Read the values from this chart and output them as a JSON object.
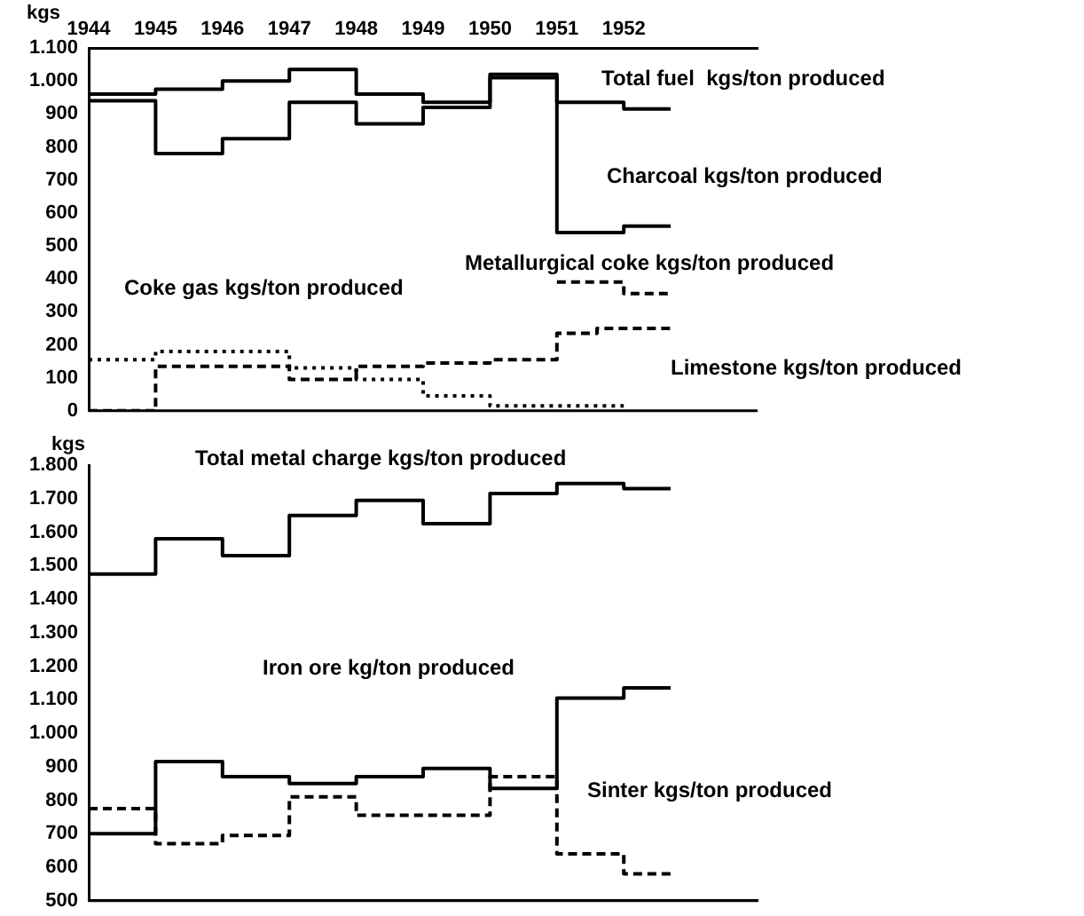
{
  "chart_data": [
    {
      "type": "step",
      "ylabel": "kgs",
      "xlim": [
        1944,
        1954
      ],
      "xticks": [
        1944,
        1945,
        1946,
        1947,
        1948,
        1949,
        1950,
        1951,
        1952
      ],
      "ylim": [
        0,
        1100
      ],
      "yticks": [
        0,
        100,
        200,
        300,
        400,
        500,
        600,
        700,
        800,
        900,
        {
          "value": 1000,
          "label": "1.000"
        },
        {
          "value": 1100,
          "label": "1.100"
        }
      ],
      "grid": false,
      "legend": false,
      "series": [
        {
          "color": "#000000",
          "line_style": "solid",
          "x": [
            1944,
            1945,
            1946,
            1947,
            1948,
            1949,
            1950,
            1951,
            1952,
            1952.7
          ],
          "values": [
            960,
            975,
            1000,
            1035,
            960,
            935,
            1020,
            935,
            915,
            915
          ]
        },
        {
          "color": "#000000",
          "line_style": "solid",
          "x": [
            1944,
            1945,
            1946,
            1947,
            1948,
            1949,
            1950,
            1951,
            1952,
            1952.7
          ],
          "values": [
            940,
            780,
            825,
            935,
            870,
            920,
            1010,
            540,
            560,
            560
          ]
        },
        {
          "color": "#000000",
          "line_style": "dotted",
          "x": [
            1944,
            1945,
            1947,
            1948,
            1949,
            1950,
            1952
          ],
          "values": [
            155,
            180,
            130,
            95,
            45,
            15,
            15
          ]
        },
        {
          "color": "#000000",
          "line_style": "dashed",
          "x": [
            1944,
            1945,
            1947,
            1948,
            1949,
            1950,
            1951,
            1951.6,
            1952.7
          ],
          "values": [
            0,
            135,
            95,
            135,
            145,
            155,
            235,
            250,
            250
          ]
        },
        {
          "color": "#000000",
          "line_style": "dashed",
          "x": [
            1951,
            1952,
            1952.7
          ],
          "values": [
            390,
            355,
            355
          ]
        }
      ],
      "annotations": [
        "Total fuel  kgs/ton produced",
        "Charcoal kgs/ton produced",
        "Metallurgical coke kgs/ton produced",
        "Coke gas kgs/ton produced",
        "Limestone kgs/ton produced"
      ]
    },
    {
      "type": "step",
      "ylabel": "kgs",
      "xlim": [
        1944,
        1954
      ],
      "tick_labels": "y",
      "ylim": [
        500,
        1800
      ],
      "yticks": [
        500,
        600,
        700,
        800,
        900,
        {
          "value": 1000,
          "label": "1.000"
        },
        {
          "value": 1100,
          "label": "1.100"
        },
        {
          "value": 1200,
          "label": "1.200"
        },
        {
          "value": 1300,
          "label": "1.300"
        },
        {
          "value": 1400,
          "label": "1.400"
        },
        {
          "value": 1500,
          "label": "1.500"
        },
        {
          "value": 1600,
          "label": "1.600"
        },
        {
          "value": 1700,
          "label": "1.700"
        },
        {
          "value": 1800,
          "label": "1.800"
        }
      ],
      "grid": false,
      "legend": false,
      "series": [
        {
          "color": "#000000",
          "line_style": "solid",
          "x": [
            1944,
            1945,
            1946,
            1947,
            1948,
            1949,
            1950,
            1951,
            1952,
            1952.7
          ],
          "values": [
            1475,
            1580,
            1530,
            1650,
            1695,
            1625,
            1715,
            1745,
            1730,
            1730
          ]
        },
        {
          "color": "#000000",
          "line_style": "solid",
          "x": [
            1944,
            1945,
            1946,
            1947,
            1948,
            1949,
            1950,
            1951,
            1952,
            1952.7
          ],
          "values": [
            700,
            915,
            870,
            850,
            870,
            895,
            835,
            1105,
            1135,
            1135
          ]
        },
        {
          "color": "#000000",
          "line_style": "dashed",
          "x": [
            1944,
            1945,
            1946,
            1947,
            1948,
            1950,
            1951,
            1952,
            1952.7
          ],
          "values": [
            775,
            670,
            695,
            810,
            755,
            870,
            640,
            580,
            580
          ]
        }
      ],
      "annotations": [
        "Total metal charge kgs/ton produced",
        "Iron ore kg/ton produced",
        "Sinter kgs/ton produced"
      ]
    }
  ]
}
